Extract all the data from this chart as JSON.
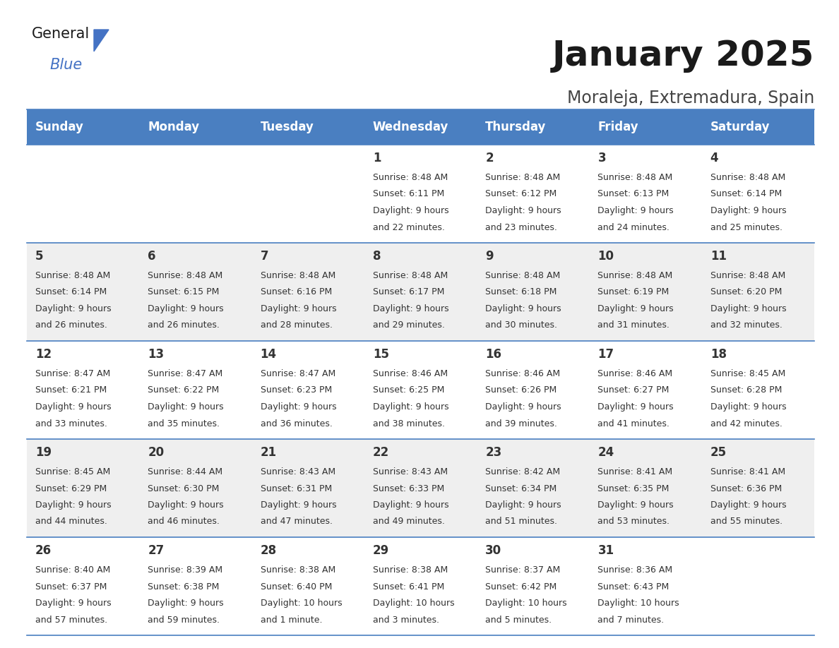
{
  "title": "January 2025",
  "subtitle": "Moraleja, Extremadura, Spain",
  "header_color": "#4a7fc1",
  "header_text_color": "#FFFFFF",
  "days_of_week": [
    "Sunday",
    "Monday",
    "Tuesday",
    "Wednesday",
    "Thursday",
    "Friday",
    "Saturday"
  ],
  "bg_color": "#FFFFFF",
  "cell_bg_white": "#FFFFFF",
  "cell_bg_gray": "#EFEFEF",
  "row_separator_color": "#4a7fc1",
  "text_color": "#333333",
  "calendar_data": [
    [
      {
        "day": "",
        "sunrise": "",
        "sunset": "",
        "daylight": ""
      },
      {
        "day": "",
        "sunrise": "",
        "sunset": "",
        "daylight": ""
      },
      {
        "day": "",
        "sunrise": "",
        "sunset": "",
        "daylight": ""
      },
      {
        "day": "1",
        "sunrise": "8:48 AM",
        "sunset": "6:11 PM",
        "daylight": "9 hours",
        "daylight2": "and 22 minutes."
      },
      {
        "day": "2",
        "sunrise": "8:48 AM",
        "sunset": "6:12 PM",
        "daylight": "9 hours",
        "daylight2": "and 23 minutes."
      },
      {
        "day": "3",
        "sunrise": "8:48 AM",
        "sunset": "6:13 PM",
        "daylight": "9 hours",
        "daylight2": "and 24 minutes."
      },
      {
        "day": "4",
        "sunrise": "8:48 AM",
        "sunset": "6:14 PM",
        "daylight": "9 hours",
        "daylight2": "and 25 minutes."
      }
    ],
    [
      {
        "day": "5",
        "sunrise": "8:48 AM",
        "sunset": "6:14 PM",
        "daylight": "9 hours",
        "daylight2": "and 26 minutes."
      },
      {
        "day": "6",
        "sunrise": "8:48 AM",
        "sunset": "6:15 PM",
        "daylight": "9 hours",
        "daylight2": "and 26 minutes."
      },
      {
        "day": "7",
        "sunrise": "8:48 AM",
        "sunset": "6:16 PM",
        "daylight": "9 hours",
        "daylight2": "and 28 minutes."
      },
      {
        "day": "8",
        "sunrise": "8:48 AM",
        "sunset": "6:17 PM",
        "daylight": "9 hours",
        "daylight2": "and 29 minutes."
      },
      {
        "day": "9",
        "sunrise": "8:48 AM",
        "sunset": "6:18 PM",
        "daylight": "9 hours",
        "daylight2": "and 30 minutes."
      },
      {
        "day": "10",
        "sunrise": "8:48 AM",
        "sunset": "6:19 PM",
        "daylight": "9 hours",
        "daylight2": "and 31 minutes."
      },
      {
        "day": "11",
        "sunrise": "8:48 AM",
        "sunset": "6:20 PM",
        "daylight": "9 hours",
        "daylight2": "and 32 minutes."
      }
    ],
    [
      {
        "day": "12",
        "sunrise": "8:47 AM",
        "sunset": "6:21 PM",
        "daylight": "9 hours",
        "daylight2": "and 33 minutes."
      },
      {
        "day": "13",
        "sunrise": "8:47 AM",
        "sunset": "6:22 PM",
        "daylight": "9 hours",
        "daylight2": "and 35 minutes."
      },
      {
        "day": "14",
        "sunrise": "8:47 AM",
        "sunset": "6:23 PM",
        "daylight": "9 hours",
        "daylight2": "and 36 minutes."
      },
      {
        "day": "15",
        "sunrise": "8:46 AM",
        "sunset": "6:25 PM",
        "daylight": "9 hours",
        "daylight2": "and 38 minutes."
      },
      {
        "day": "16",
        "sunrise": "8:46 AM",
        "sunset": "6:26 PM",
        "daylight": "9 hours",
        "daylight2": "and 39 minutes."
      },
      {
        "day": "17",
        "sunrise": "8:46 AM",
        "sunset": "6:27 PM",
        "daylight": "9 hours",
        "daylight2": "and 41 minutes."
      },
      {
        "day": "18",
        "sunrise": "8:45 AM",
        "sunset": "6:28 PM",
        "daylight": "9 hours",
        "daylight2": "and 42 minutes."
      }
    ],
    [
      {
        "day": "19",
        "sunrise": "8:45 AM",
        "sunset": "6:29 PM",
        "daylight": "9 hours",
        "daylight2": "and 44 minutes."
      },
      {
        "day": "20",
        "sunrise": "8:44 AM",
        "sunset": "6:30 PM",
        "daylight": "9 hours",
        "daylight2": "and 46 minutes."
      },
      {
        "day": "21",
        "sunrise": "8:43 AM",
        "sunset": "6:31 PM",
        "daylight": "9 hours",
        "daylight2": "and 47 minutes."
      },
      {
        "day": "22",
        "sunrise": "8:43 AM",
        "sunset": "6:33 PM",
        "daylight": "9 hours",
        "daylight2": "and 49 minutes."
      },
      {
        "day": "23",
        "sunrise": "8:42 AM",
        "sunset": "6:34 PM",
        "daylight": "9 hours",
        "daylight2": "and 51 minutes."
      },
      {
        "day": "24",
        "sunrise": "8:41 AM",
        "sunset": "6:35 PM",
        "daylight": "9 hours",
        "daylight2": "and 53 minutes."
      },
      {
        "day": "25",
        "sunrise": "8:41 AM",
        "sunset": "6:36 PM",
        "daylight": "9 hours",
        "daylight2": "and 55 minutes."
      }
    ],
    [
      {
        "day": "26",
        "sunrise": "8:40 AM",
        "sunset": "6:37 PM",
        "daylight": "9 hours",
        "daylight2": "and 57 minutes."
      },
      {
        "day": "27",
        "sunrise": "8:39 AM",
        "sunset": "6:38 PM",
        "daylight": "9 hours",
        "daylight2": "and 59 minutes."
      },
      {
        "day": "28",
        "sunrise": "8:38 AM",
        "sunset": "6:40 PM",
        "daylight": "10 hours",
        "daylight2": "and 1 minute."
      },
      {
        "day": "29",
        "sunrise": "8:38 AM",
        "sunset": "6:41 PM",
        "daylight": "10 hours",
        "daylight2": "and 3 minutes."
      },
      {
        "day": "30",
        "sunrise": "8:37 AM",
        "sunset": "6:42 PM",
        "daylight": "10 hours",
        "daylight2": "and 5 minutes."
      },
      {
        "day": "31",
        "sunrise": "8:36 AM",
        "sunset": "6:43 PM",
        "daylight": "10 hours",
        "daylight2": "and 7 minutes."
      },
      {
        "day": "",
        "sunrise": "",
        "sunset": "",
        "daylight": "",
        "daylight2": ""
      }
    ]
  ],
  "title_fontsize": 36,
  "subtitle_fontsize": 17,
  "header_fontsize": 12,
  "day_num_fontsize": 12,
  "cell_text_fontsize": 9
}
